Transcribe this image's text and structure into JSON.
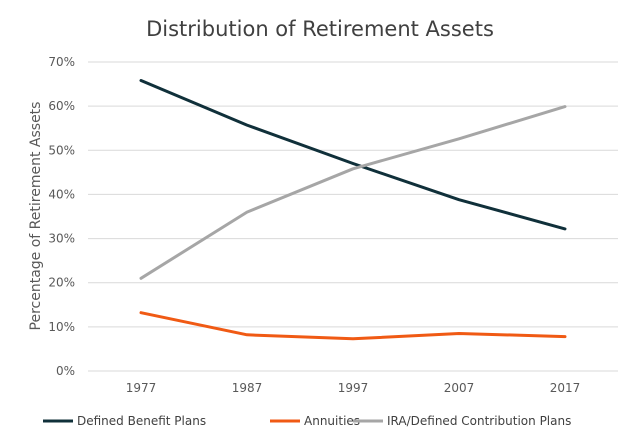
{
  "chart_data": {
    "type": "line",
    "title": "Distribution of Retirement Assets",
    "xlabel": "",
    "ylabel": "Percentage of Retirement Assets",
    "categories": [
      "1977",
      "1987",
      "1997",
      "2007",
      "2017"
    ],
    "ylim": [
      0,
      70
    ],
    "yticks": [
      0,
      10,
      20,
      30,
      40,
      50,
      60,
      70
    ],
    "ytick_labels": [
      "0%",
      "10%",
      "20%",
      "30%",
      "40%",
      "50%",
      "60%",
      "70%"
    ],
    "grid": true,
    "legend_position": "bottom",
    "series": [
      {
        "name": "Defined Benefit Plans",
        "color": "#10303a",
        "values": [
          65.8,
          55.7,
          47,
          38.8,
          32.2
        ]
      },
      {
        "name": "Annuities",
        "color": "#f05a14",
        "values": [
          13.2,
          8.2,
          7.3,
          8.5,
          7.8
        ]
      },
      {
        "name": "IRA/Defined Contribution Plans",
        "color": "#a6a6a6",
        "values": [
          21,
          36,
          45.8,
          52.6,
          59.9
        ]
      }
    ]
  }
}
